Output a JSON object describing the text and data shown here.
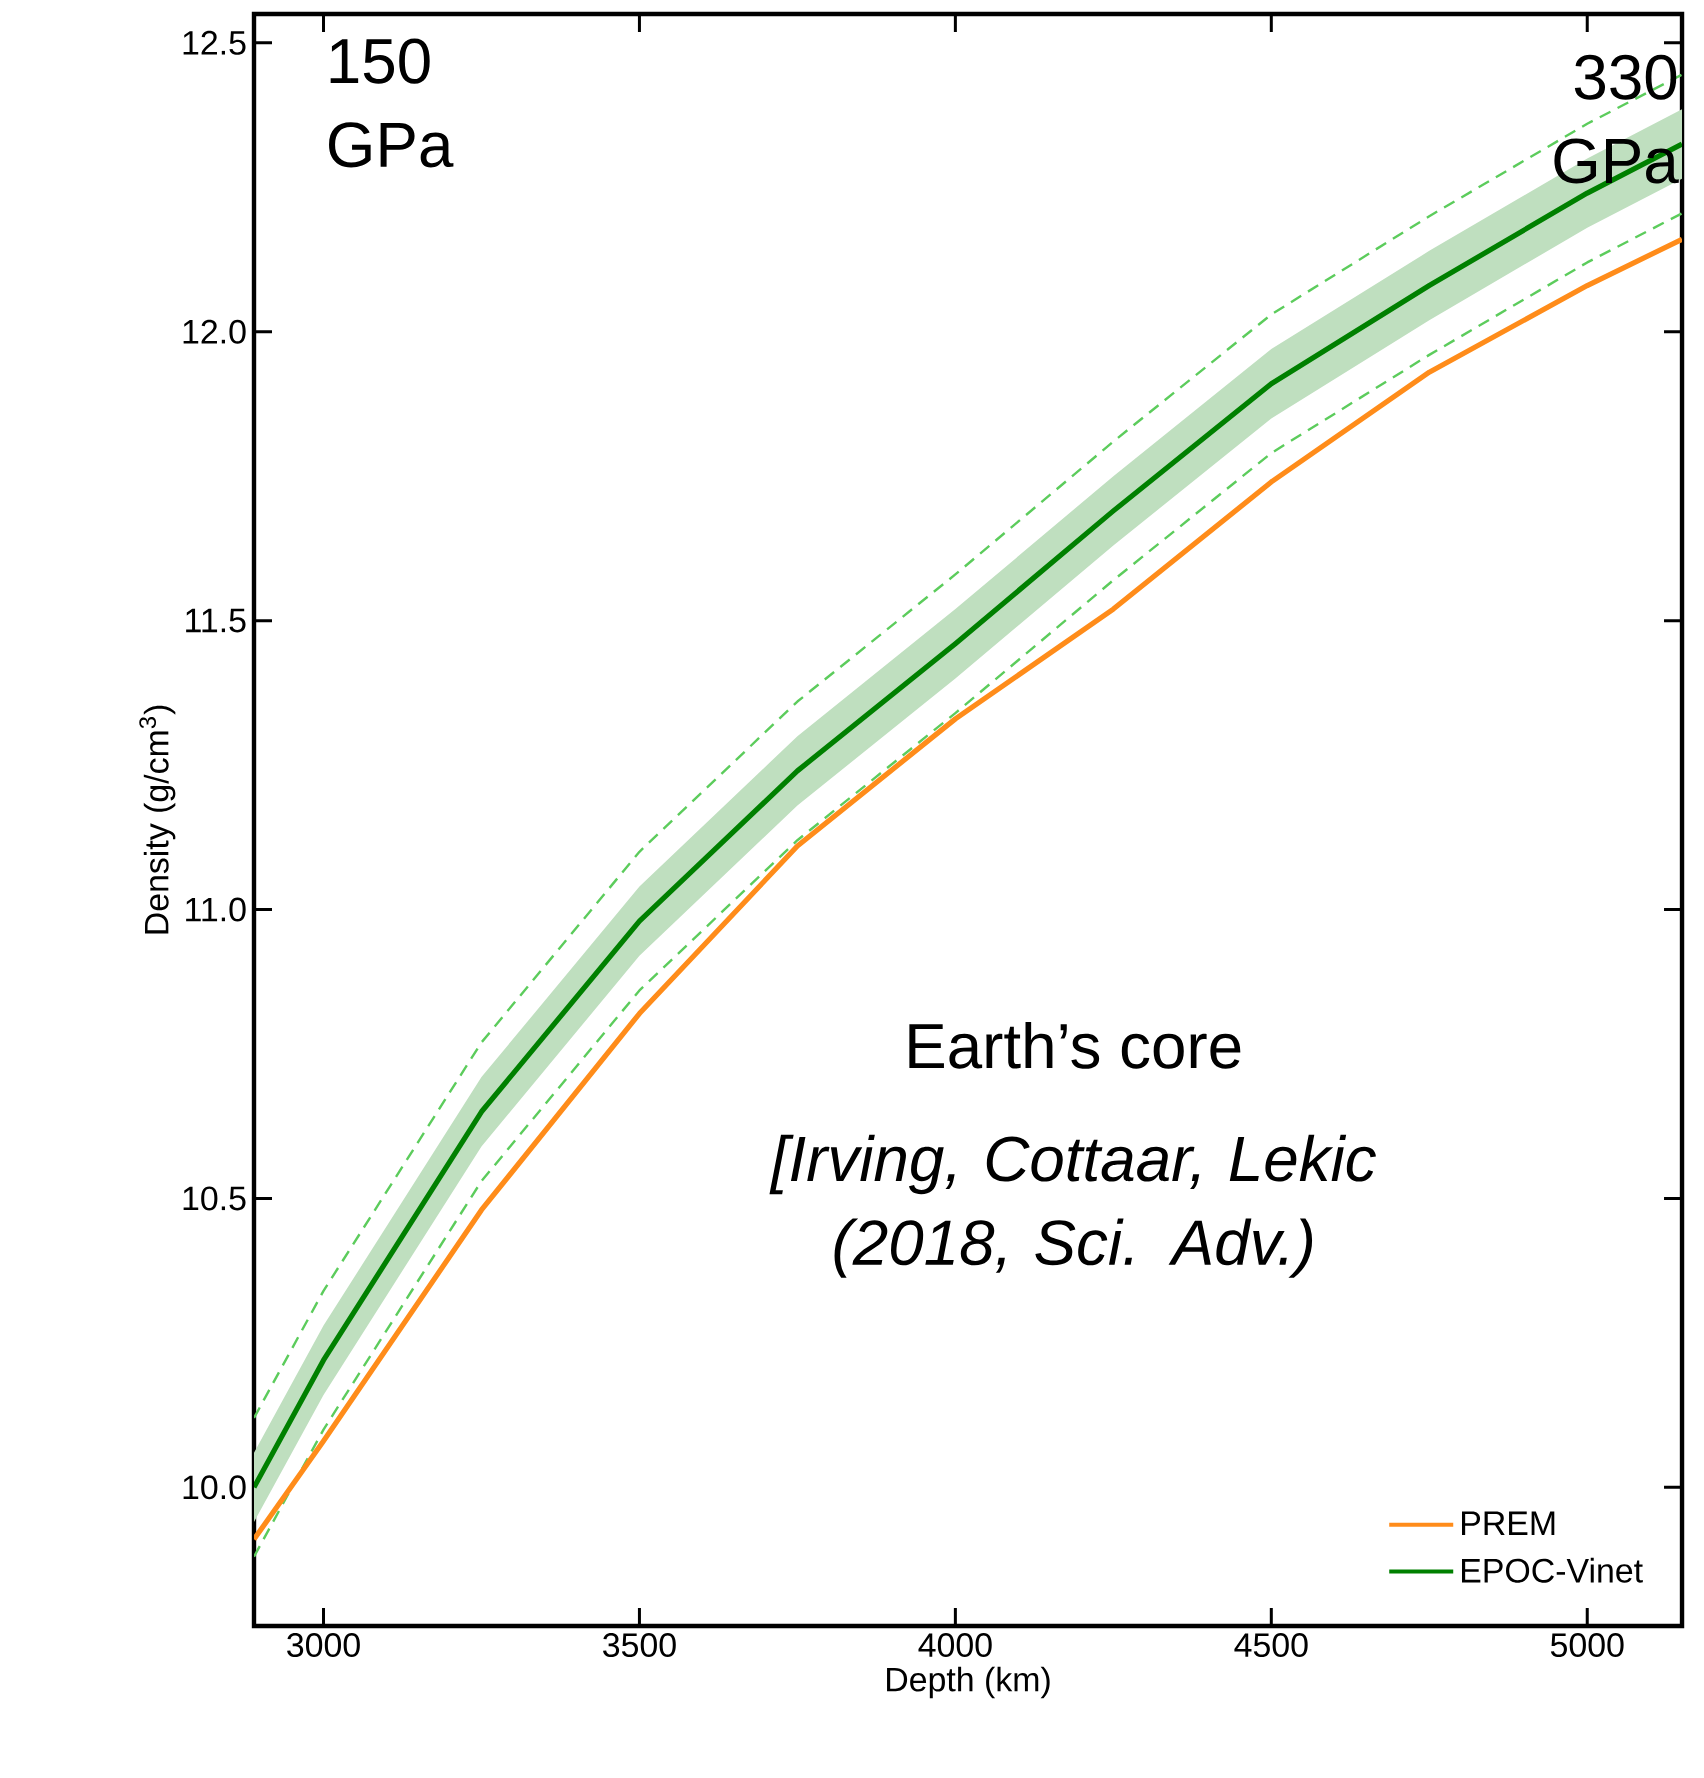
{
  "chart_data": {
    "type": "line",
    "xlabel": "Depth (km)",
    "ylabel": "Density (g/cm$^{3}$)",
    "x": [
      2890,
      3000,
      3250,
      3500,
      3750,
      4000,
      4250,
      4500,
      4750,
      5000,
      5150
    ],
    "series": [
      {
        "name": "PREM",
        "color": "#ff8c1a",
        "values": [
          9.91,
          10.08,
          10.48,
          10.82,
          11.11,
          11.33,
          11.52,
          11.74,
          11.93,
          12.08,
          12.16
        ]
      },
      {
        "name": "EPOC-Vinet",
        "color": "#008000",
        "values": [
          10.0,
          10.22,
          10.65,
          10.98,
          11.24,
          11.46,
          11.69,
          11.91,
          12.08,
          12.24,
          12.325
        ],
        "lower": [
          9.94,
          10.16,
          10.59,
          10.92,
          11.18,
          11.4,
          11.63,
          11.85,
          12.02,
          12.18,
          12.265
        ],
        "upper": [
          10.06,
          10.28,
          10.71,
          11.04,
          11.3,
          11.52,
          11.75,
          11.97,
          12.14,
          12.3,
          12.385
        ]
      },
      {
        "color": "#5ccc5c",
        "line_style": "dashed",
        "values": [
          10.12,
          10.34,
          10.77,
          11.1,
          11.36,
          11.58,
          11.81,
          12.03,
          12.2,
          12.36,
          12.445
        ]
      },
      {
        "color": "#5ccc5c",
        "line_style": "dashed",
        "values": [
          9.88,
          10.1,
          10.53,
          10.86,
          11.12,
          11.34,
          11.57,
          11.79,
          11.96,
          12.12,
          12.205
        ]
      }
    ],
    "xlim": [
      2890,
      5150
    ],
    "ylim": [
      9.76,
      12.55
    ],
    "xticks": [
      3000,
      3500,
      4000,
      4500,
      5000
    ],
    "yticks": [
      {
        "value": 10,
        "label": "10.0"
      },
      {
        "value": 10.5,
        "label": "10.5"
      },
      {
        "value": 11,
        "label": "11.0"
      },
      {
        "value": 11.5,
        "label": "11.5"
      },
      {
        "value": 12,
        "label": "12.0"
      },
      {
        "value": 12.5,
        "label": "12.5"
      }
    ],
    "grid": false,
    "legend": "bottom right",
    "marker": "none",
    "line_style": "solid",
    "annotations": [
      "150 GPa",
      "330 GPa",
      "Earth’s core",
      "*[Irving, Cottaar, Lekic (2018, Sci. Adv.)*"
    ]
  }
}
